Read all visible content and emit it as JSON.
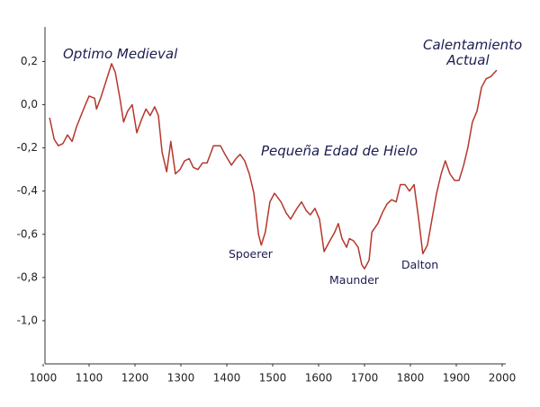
{
  "chart_data": {
    "type": "line",
    "annotations": [
      "Optimo Medieval",
      "Calentamiento Actual",
      "Pequeña Edad de Hielo",
      "Spoerer",
      "Maunder",
      "Dalton"
    ],
    "x": [
      1014,
      1024,
      1033,
      1043,
      1053,
      1063,
      1073,
      1092,
      1100,
      1112,
      1116,
      1125,
      1137,
      1149,
      1157,
      1167,
      1175,
      1184,
      1194,
      1204,
      1214,
      1224,
      1233,
      1243,
      1251,
      1259,
      1269,
      1278,
      1288,
      1298,
      1308,
      1318,
      1327,
      1337,
      1347,
      1357,
      1371,
      1386,
      1396,
      1410,
      1420,
      1429,
      1439,
      1449,
      1459,
      1469,
      1475,
      1484,
      1494,
      1504,
      1518,
      1529,
      1539,
      1553,
      1563,
      1573,
      1582,
      1592,
      1602,
      1612,
      1622,
      1635,
      1643,
      1651,
      1661,
      1667,
      1676,
      1686,
      1694,
      1700,
      1710,
      1716,
      1729,
      1739,
      1749,
      1759,
      1769,
      1778,
      1788,
      1798,
      1808,
      1818,
      1827,
      1837,
      1847,
      1857,
      1867,
      1876,
      1886,
      1896,
      1906,
      1916,
      1925,
      1935,
      1945,
      1955,
      1965,
      1975,
      1988
    ],
    "series": [
      {
        "color": "#b5372c",
        "values": [
          -0.06,
          -0.16,
          -0.19,
          -0.18,
          -0.14,
          -0.17,
          -0.1,
          0.0,
          0.04,
          0.03,
          -0.02,
          0.03,
          0.11,
          0.19,
          0.15,
          0.03,
          -0.08,
          -0.03,
          0.0,
          -0.13,
          -0.07,
          -0.02,
          -0.05,
          -0.01,
          -0.05,
          -0.22,
          -0.31,
          -0.17,
          -0.32,
          -0.3,
          -0.26,
          -0.25,
          -0.29,
          -0.3,
          -0.27,
          -0.27,
          -0.19,
          -0.19,
          -0.23,
          -0.28,
          -0.25,
          -0.23,
          -0.26,
          -0.32,
          -0.41,
          -0.6,
          -0.65,
          -0.59,
          -0.45,
          -0.41,
          -0.45,
          -0.5,
          -0.53,
          -0.48,
          -0.45,
          -0.49,
          -0.51,
          -0.48,
          -0.53,
          -0.68,
          -0.64,
          -0.59,
          -0.55,
          -0.62,
          -0.66,
          -0.62,
          -0.63,
          -0.66,
          -0.74,
          -0.76,
          -0.72,
          -0.59,
          -0.55,
          -0.5,
          -0.46,
          -0.44,
          -0.45,
          -0.37,
          -0.37,
          -0.4,
          -0.37,
          -0.53,
          -0.69,
          -0.65,
          -0.53,
          -0.41,
          -0.32,
          -0.26,
          -0.32,
          -0.35,
          -0.35,
          -0.28,
          -0.2,
          -0.08,
          -0.03,
          0.08,
          0.12,
          0.13,
          0.16
        ]
      }
    ],
    "xlim": [
      1000,
      2000
    ],
    "xticks": [
      1000,
      1100,
      1200,
      1300,
      1400,
      1500,
      1600,
      1700,
      1800,
      1900,
      2000
    ],
    "ylim": [
      -1.2,
      0.36
    ],
    "yticks": [
      {
        "value": 0.2,
        "label": "0,2"
      },
      {
        "value": 0.0,
        "label": "0,0"
      },
      {
        "value": -0.2,
        "label": "-0,2"
      },
      {
        "value": -0.4,
        "label": "-0,4"
      },
      {
        "value": -0.6,
        "label": "-0,6"
      },
      {
        "value": -0.8,
        "label": "-0,8"
      },
      {
        "value": -1.0,
        "label": "-1,0"
      }
    ]
  }
}
